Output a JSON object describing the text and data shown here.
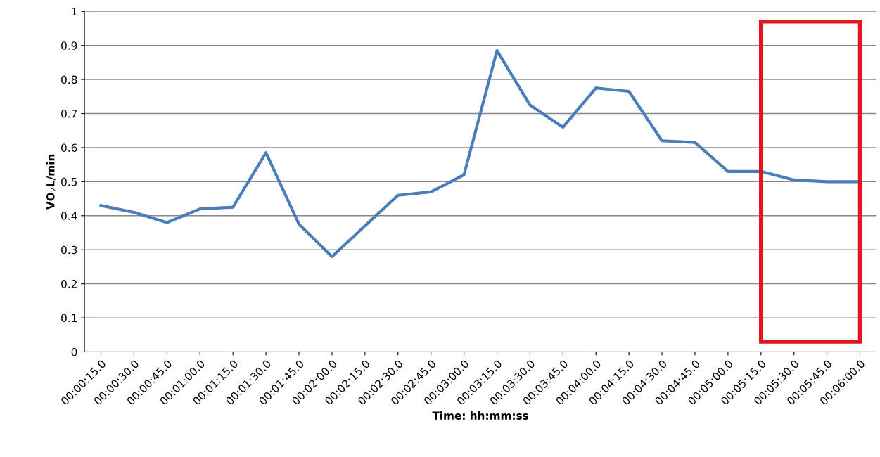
{
  "chart_data": {
    "type": "line",
    "xlabel": "Time: hh:mm:ss",
    "ylabel": "VO$_{2}$L/min",
    "categories": [
      "00:00:15.0",
      "00:00:30.0",
      "00:00:45.0",
      "00:01:00.0",
      "00:01:15.0",
      "00:01:30.0",
      "00:01:45.0",
      "00:02:00.0",
      "00:02:15.0",
      "00:02:30.0",
      "00:02:45.0",
      "00:03:00.0",
      "00:03:15.0",
      "00:03:30.0",
      "00:03:45.0",
      "00:04:00.0",
      "00:04:15.0",
      "00:04:30.0",
      "00:04:45.0",
      "00:05:00.0",
      "00:05:15.0",
      "00:05:30.0",
      "00:05:45.0",
      "00:06:00.0"
    ],
    "series": [
      {
        "color": "#4a7ebb",
        "values": [
          0.43,
          0.41,
          0.38,
          0.42,
          0.425,
          0.585,
          0.375,
          0.28,
          0.37,
          0.46,
          0.47,
          0.52,
          0.885,
          0.725,
          0.66,
          0.775,
          0.765,
          0.62,
          0.615,
          0.53,
          0.53,
          0.505,
          0.5,
          0.5
        ]
      }
    ],
    "ylim": [
      0,
      1
    ],
    "yticks": [
      0,
      0.1,
      0.2,
      0.3,
      0.4,
      0.5,
      0.6,
      0.7,
      0.8,
      0.9,
      1
    ],
    "grid": "y",
    "marker": "none",
    "line_style": "solid"
  }
}
